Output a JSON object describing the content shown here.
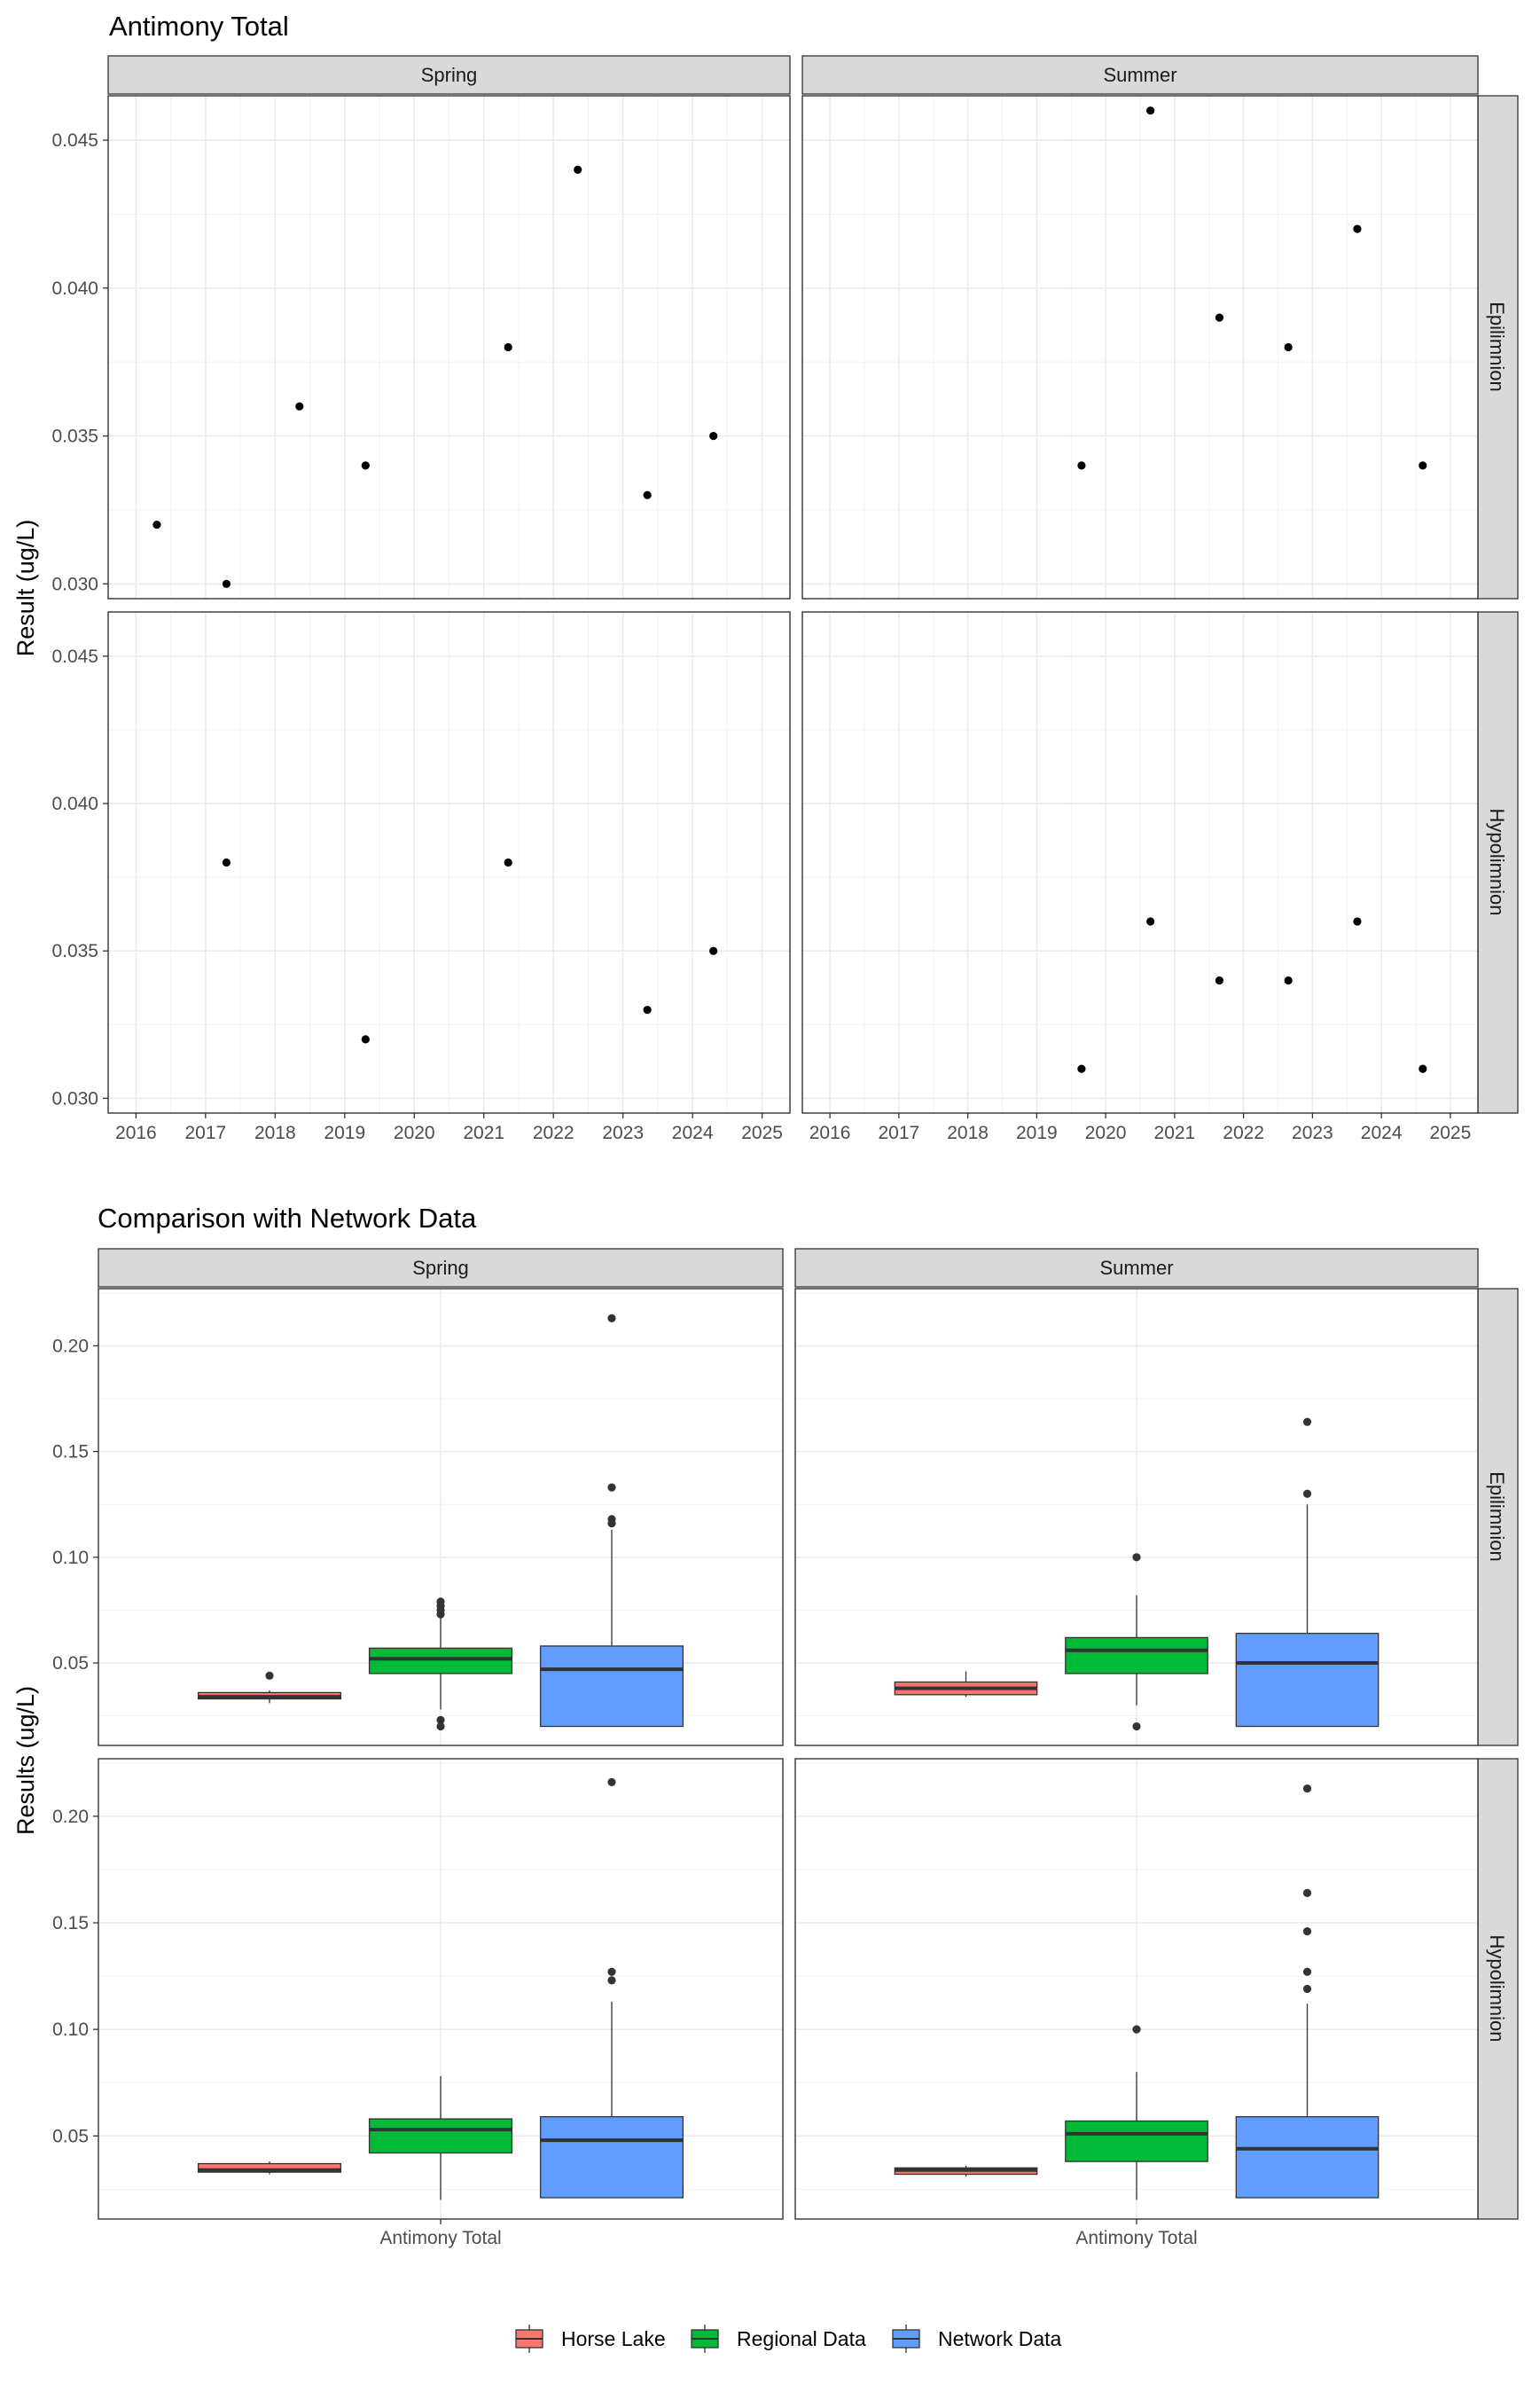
{
  "chart_data": [
    {
      "type": "scatter",
      "title": "Antimony Total",
      "ylabel": "Result (ug/L)",
      "xlabel": "",
      "columns": [
        "Spring",
        "Summer"
      ],
      "rows": [
        "Epilimnion",
        "Hypolimnion"
      ],
      "xlim": [
        2015.6,
        2025.4
      ],
      "ylim": [
        0.0295,
        0.0465
      ],
      "x_ticks": [
        2016,
        2017,
        2018,
        2019,
        2020,
        2021,
        2022,
        2023,
        2024,
        2025
      ],
      "y_ticks": [
        0.03,
        0.035,
        0.04,
        0.045
      ],
      "y_tick_labels": [
        "0.030",
        "0.035",
        "0.040",
        "0.045"
      ],
      "grid": true,
      "panels": [
        {
          "season": "Spring",
          "layer": "Epilimnion",
          "points": [
            [
              2016.3,
              0.032
            ],
            [
              2017.3,
              0.03
            ],
            [
              2018.35,
              0.036
            ],
            [
              2019.3,
              0.034
            ],
            [
              2021.35,
              0.038
            ],
            [
              2022.35,
              0.044
            ],
            [
              2023.35,
              0.033
            ],
            [
              2024.3,
              0.035
            ]
          ]
        },
        {
          "season": "Summer",
          "layer": "Epilimnion",
          "points": [
            [
              2019.65,
              0.034
            ],
            [
              2020.65,
              0.046
            ],
            [
              2021.65,
              0.039
            ],
            [
              2022.65,
              0.038
            ],
            [
              2023.65,
              0.042
            ],
            [
              2024.6,
              0.034
            ]
          ]
        },
        {
          "season": "Spring",
          "layer": "Hypolimnion",
          "points": [
            [
              2017.3,
              0.038
            ],
            [
              2019.3,
              0.032
            ],
            [
              2021.35,
              0.038
            ],
            [
              2023.35,
              0.033
            ],
            [
              2024.3,
              0.035
            ]
          ]
        },
        {
          "season": "Summer",
          "layer": "Hypolimnion",
          "points": [
            [
              2019.65,
              0.031
            ],
            [
              2020.65,
              0.036
            ],
            [
              2021.65,
              0.034
            ],
            [
              2022.65,
              0.034
            ],
            [
              2023.65,
              0.036
            ],
            [
              2024.6,
              0.031
            ]
          ]
        }
      ]
    },
    {
      "type": "box",
      "title": "Comparison with Network Data",
      "ylabel": "Results (ug/L)",
      "xlabel": "",
      "columns": [
        "Spring",
        "Summer"
      ],
      "rows": [
        "Epilimnion",
        "Hypolimnion"
      ],
      "category": "Antimony Total",
      "ylim": [
        0.011,
        0.227
      ],
      "y_ticks": [
        0.05,
        0.1,
        0.15,
        0.2
      ],
      "y_tick_labels": [
        "0.05",
        "0.10",
        "0.15",
        "0.20"
      ],
      "grid": true,
      "legend_position": "bottom",
      "legend": [
        {
          "name": "Horse Lake",
          "color": "#F8766D"
        },
        {
          "name": "Regional Data",
          "color": "#00BA38"
        },
        {
          "name": "Network Data",
          "color": "#619CFF"
        }
      ],
      "panels": [
        {
          "season": "Spring",
          "layer": "Epilimnion",
          "boxes": [
            {
              "group": "Horse Lake",
              "whisker_low": 0.031,
              "q1": 0.033,
              "median": 0.034,
              "q3": 0.036,
              "whisker_high": 0.037,
              "outliers": [
                0.044
              ]
            },
            {
              "group": "Regional Data",
              "whisker_low": 0.028,
              "q1": 0.045,
              "median": 0.052,
              "q3": 0.057,
              "whisker_high": 0.072,
              "outliers": [
                0.079,
                0.077,
                0.075,
                0.073,
                0.023,
                0.02
              ]
            },
            {
              "group": "Network Data",
              "whisker_low": 0.02,
              "q1": 0.02,
              "median": 0.047,
              "q3": 0.058,
              "whisker_high": 0.113,
              "outliers": [
                0.213,
                0.133,
                0.118,
                0.116
              ]
            }
          ]
        },
        {
          "season": "Summer",
          "layer": "Epilimnion",
          "boxes": [
            {
              "group": "Horse Lake",
              "whisker_low": 0.034,
              "q1": 0.035,
              "median": 0.038,
              "q3": 0.041,
              "whisker_high": 0.046,
              "outliers": []
            },
            {
              "group": "Regional Data",
              "whisker_low": 0.03,
              "q1": 0.045,
              "median": 0.056,
              "q3": 0.062,
              "whisker_high": 0.082,
              "outliers": [
                0.1,
                0.02
              ]
            },
            {
              "group": "Network Data",
              "whisker_low": 0.02,
              "q1": 0.02,
              "median": 0.05,
              "q3": 0.064,
              "whisker_high": 0.125,
              "outliers": [
                0.164,
                0.13
              ]
            }
          ]
        },
        {
          "season": "Spring",
          "layer": "Hypolimnion",
          "boxes": [
            {
              "group": "Horse Lake",
              "whisker_low": 0.032,
              "q1": 0.033,
              "median": 0.034,
              "q3": 0.037,
              "whisker_high": 0.038,
              "outliers": []
            },
            {
              "group": "Regional Data",
              "whisker_low": 0.02,
              "q1": 0.042,
              "median": 0.053,
              "q3": 0.058,
              "whisker_high": 0.078,
              "outliers": []
            },
            {
              "group": "Network Data",
              "whisker_low": 0.021,
              "q1": 0.021,
              "median": 0.048,
              "q3": 0.059,
              "whisker_high": 0.113,
              "outliers": [
                0.216,
                0.127,
                0.123
              ]
            }
          ]
        },
        {
          "season": "Summer",
          "layer": "Hypolimnion",
          "boxes": [
            {
              "group": "Horse Lake",
              "whisker_low": 0.031,
              "q1": 0.032,
              "median": 0.034,
              "q3": 0.035,
              "whisker_high": 0.036,
              "outliers": []
            },
            {
              "group": "Regional Data",
              "whisker_low": 0.02,
              "q1": 0.038,
              "median": 0.051,
              "q3": 0.057,
              "whisker_high": 0.08,
              "outliers": [
                0.1
              ]
            },
            {
              "group": "Network Data",
              "whisker_low": 0.021,
              "q1": 0.021,
              "median": 0.044,
              "q3": 0.059,
              "whisker_high": 0.112,
              "outliers": [
                0.213,
                0.164,
                0.146,
                0.127,
                0.119
              ]
            }
          ]
        }
      ]
    }
  ]
}
